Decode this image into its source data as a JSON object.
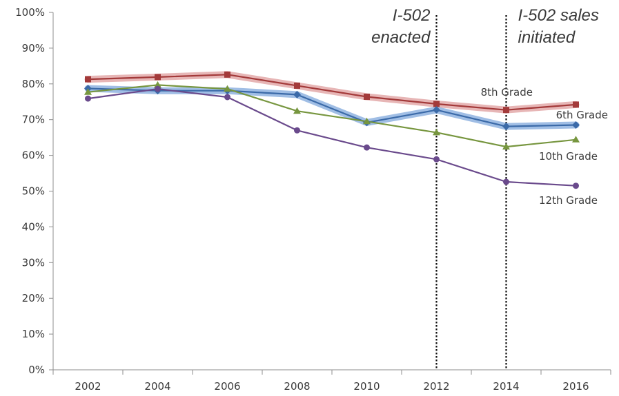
{
  "chart_data": {
    "type": "line",
    "title": "",
    "xlabel": "",
    "ylabel": "",
    "x": [
      2002,
      2004,
      2006,
      2008,
      2010,
      2012,
      2014,
      2016
    ],
    "x_tick_labels": [
      "2002",
      "2004",
      "2006",
      "2008",
      "2010",
      "2012",
      "2014",
      "2016"
    ],
    "ylim": [
      0,
      1
    ],
    "y_ticks": [
      0,
      0.1,
      0.2,
      0.3,
      0.4,
      0.5,
      0.6,
      0.7,
      0.8,
      0.9,
      1
    ],
    "y_tick_labels": [
      "0%",
      "10%",
      "20%",
      "30%",
      "40%",
      "50%",
      "60%",
      "70%",
      "80%",
      "90%",
      "100%"
    ],
    "grid": false,
    "legend": "none",
    "series": [
      {
        "name": "8th Grade",
        "values": [
          0.813,
          0.819,
          0.826,
          0.795,
          0.764,
          0.744,
          0.727,
          0.742
        ],
        "color": "#a33a3a",
        "band_color": "#e3a9a9",
        "marker": "square",
        "ci": true
      },
      {
        "name": "6th Grade",
        "values": [
          0.787,
          0.781,
          0.781,
          0.77,
          0.692,
          0.727,
          0.681,
          0.685
        ],
        "color": "#3b6aa8",
        "band_color": "#8fb3e0",
        "marker": "diamond",
        "ci": true
      },
      {
        "name": "10th Grade",
        "values": [
          0.777,
          0.797,
          0.786,
          0.724,
          0.695,
          0.664,
          0.624,
          0.644
        ],
        "color": "#77963f",
        "marker": "triangle",
        "ci": false
      },
      {
        "name": "12th Grade",
        "values": [
          0.759,
          0.786,
          0.763,
          0.67,
          0.622,
          0.589,
          0.526,
          0.515
        ],
        "color": "#6a4a8c",
        "marker": "circle",
        "ci": false
      }
    ],
    "annotations": [
      {
        "x": 2012,
        "lines": [
          "I-502",
          "enacted"
        ],
        "style": "dotted-vertical-line",
        "text_align": "right"
      },
      {
        "x": 2014,
        "lines": [
          "I-502 sales",
          "initiated"
        ],
        "style": "dotted-vertical-line",
        "text_align": "left"
      }
    ]
  }
}
